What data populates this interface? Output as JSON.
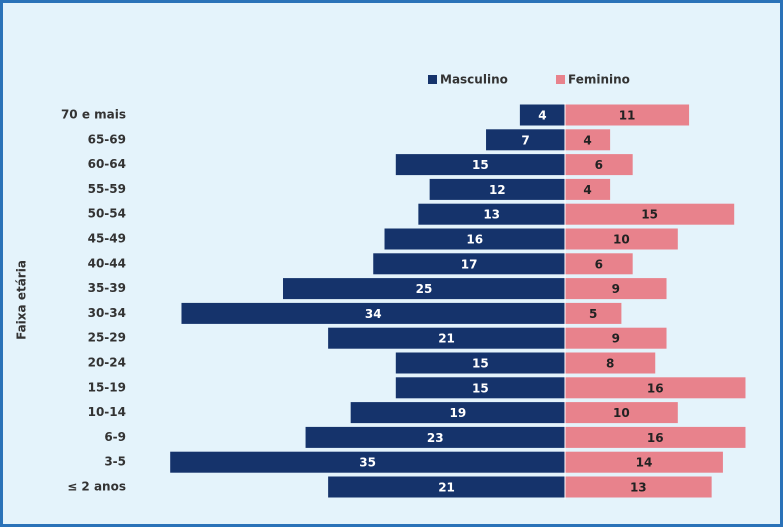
{
  "chart_data": {
    "type": "pyramid",
    "y_label": "Faixa etária",
    "categories": [
      "70 e mais",
      "65-69",
      "60-64",
      "55-59",
      "50-54",
      "45-49",
      "40-44",
      "35-39",
      "30-34",
      "25-29",
      "20-24",
      "15-19",
      "10-14",
      "6-9",
      "3-5",
      "≤ 2 anos"
    ],
    "series": [
      {
        "name": "Masculino",
        "color": "#15336b",
        "values": [
          4,
          7,
          15,
          12,
          13,
          16,
          17,
          25,
          34,
          21,
          15,
          15,
          19,
          23,
          35,
          21
        ]
      },
      {
        "name": "Feminino",
        "color": "#e8828c",
        "values": [
          11,
          4,
          6,
          4,
          15,
          10,
          6,
          9,
          5,
          9,
          8,
          16,
          10,
          16,
          14,
          13
        ]
      }
    ]
  }
}
